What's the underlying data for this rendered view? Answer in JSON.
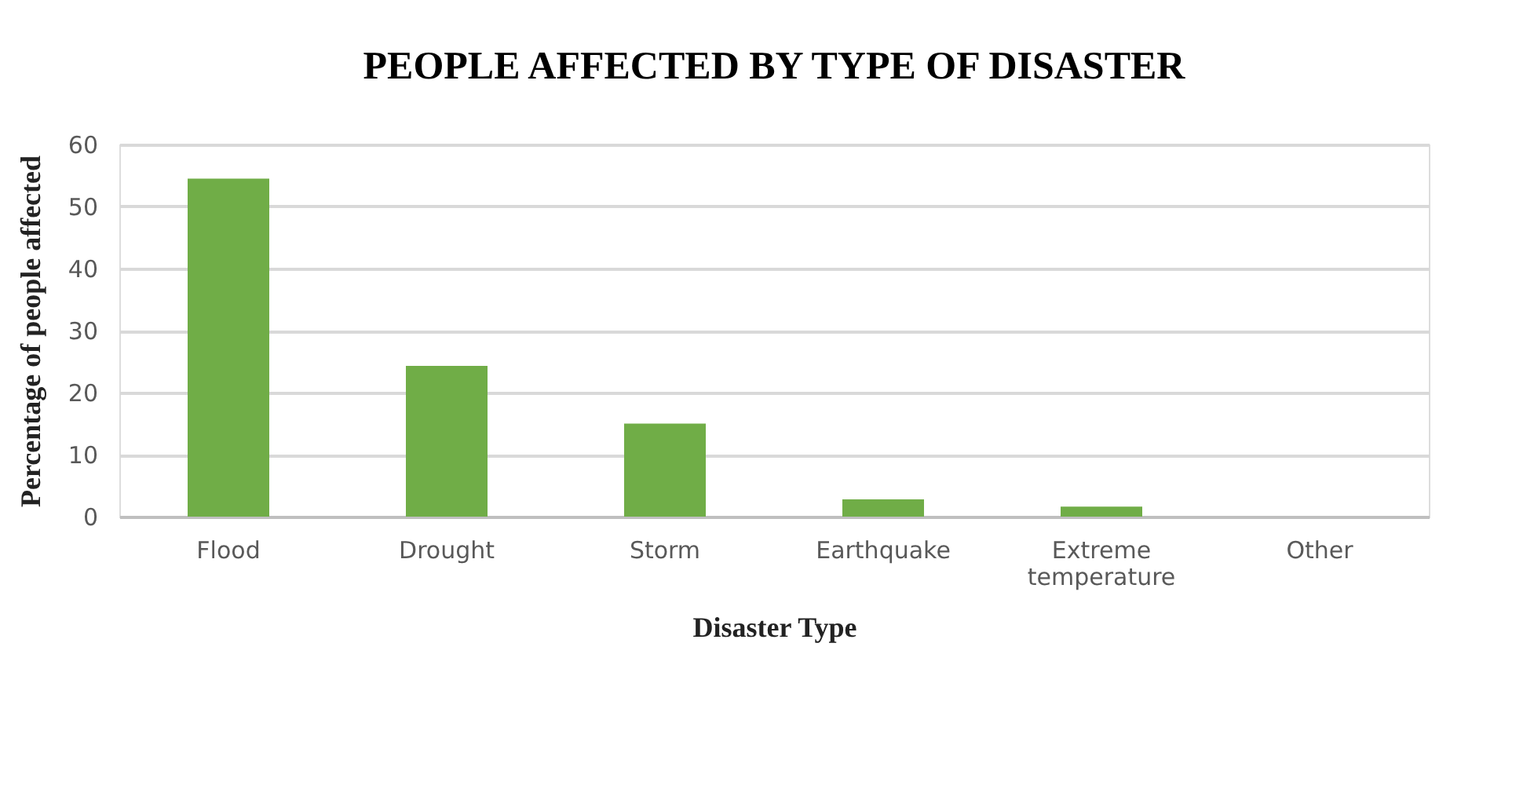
{
  "chart_data": {
    "type": "bar",
    "title": "PEOPLE AFFECTED BY TYPE OF DISASTER",
    "xlabel": "Disaster Type",
    "ylabel": "Percentage of people affected",
    "categories": [
      "Flood",
      "Drought",
      "Storm",
      "Earthquake",
      "Extreme temperature",
      "Other"
    ],
    "values": [
      54.5,
      24.3,
      15,
      2.8,
      1.6,
      0
    ],
    "color": "#70ad47",
    "ylim": [
      0,
      60
    ],
    "yticks": [
      0,
      10,
      20,
      30,
      40,
      50,
      60
    ],
    "grid": "y"
  }
}
